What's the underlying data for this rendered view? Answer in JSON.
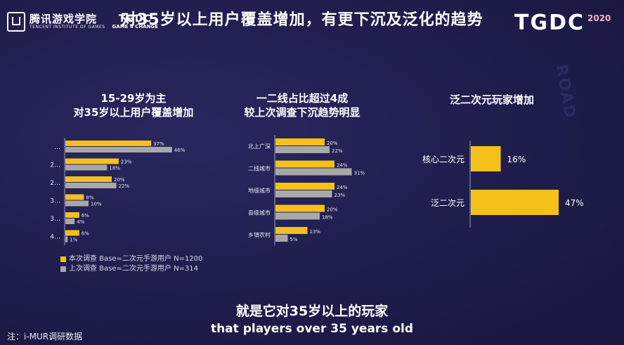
{
  "header": {
    "logo_cn": "腾讯游戏学院",
    "logo_en": "TENCENT INSTITUTE OF GAMES",
    "logo_game_change_top": "TGDC",
    "logo_game_change_bottom": "GAME 4 CHANGE",
    "title": "对35岁以上用户覆盖增加，有更下沉及泛化的趋势",
    "brand": "TGDC",
    "brand_year": "2020",
    "watermark": "ROAD"
  },
  "colors": {
    "current": "#f5c01a",
    "previous": "#a8a8a8",
    "background": "#1e1c4a"
  },
  "panels": {
    "age_title_1": "15-29岁为主",
    "age_title_2": "对35岁以上用户覆盖增加",
    "tier_title_1": "一二线占比超过4成",
    "tier_title_2": "较上次调查下沉趋势明显",
    "type_title": "泛二次元玩家增加"
  },
  "legend": {
    "current_label": "本次调查 Base=二次元手游用户 N=1200",
    "previous_label": "上次调查 Base=二次元手游用户 N=314"
  },
  "subtitles": {
    "cn": "就是它对35岁以上的玩家",
    "en": "that players over 35 years old"
  },
  "footnote": "注：i-MUR调研数据",
  "chart_data": [
    {
      "type": "bar",
      "orientation": "horizontal",
      "title": "15-29岁为主 对35岁以上用户覆盖增加",
      "categories": [
        "…",
        "2…",
        "2…",
        "3…",
        "3…",
        "4…"
      ],
      "series": [
        {
          "name": "本次调查 Base=二次元手游用户 N=1200",
          "values": [
            37,
            23,
            20,
            8,
            6,
            6
          ]
        },
        {
          "name": "上次调查 Base=二次元手游用户 N=314",
          "values": [
            46,
            18,
            22,
            10,
            4,
            1
          ]
        }
      ],
      "unit": "%"
    },
    {
      "type": "bar",
      "orientation": "horizontal",
      "title": "一二线占比超过4成 较上次调查下沉趋势明显",
      "categories": [
        "北上广深",
        "二线城市",
        "地级城市",
        "县级城市",
        "乡镇农村"
      ],
      "series": [
        {
          "name": "本次调查 Base=二次元手游用户 N=1200",
          "values": [
            20,
            24,
            24,
            20,
            13
          ]
        },
        {
          "name": "上次调查 Base=二次元手游用户 N=314",
          "values": [
            22,
            31,
            23,
            18,
            5
          ]
        }
      ],
      "unit": "%"
    },
    {
      "type": "bar",
      "orientation": "horizontal",
      "title": "泛二次元玩家增加",
      "categories": [
        "核心二次元",
        "泛二次元"
      ],
      "values": [
        16,
        47
      ],
      "unit": "%"
    }
  ]
}
